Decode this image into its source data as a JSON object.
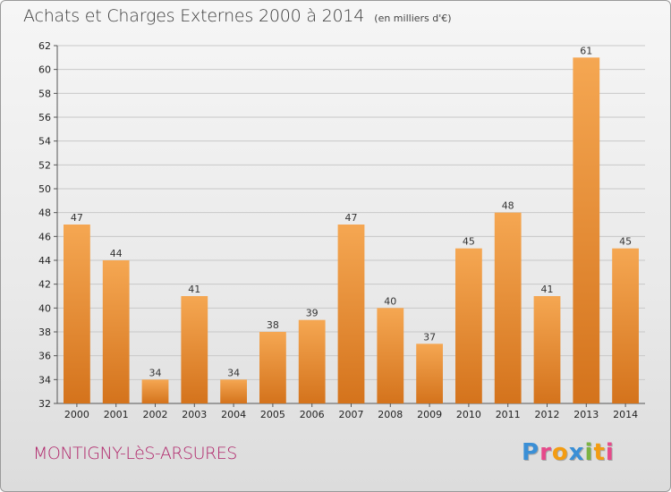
{
  "header": {
    "title": "Achats et Charges Externes 2000 à 2014",
    "subtitle": "(en milliers d'€)"
  },
  "footer": {
    "commune": "MONTIGNY-LèS-ARSURES",
    "logo_letters": [
      "P",
      "r",
      "o",
      "x",
      "i",
      "t",
      "i"
    ],
    "logo_colors": [
      "#3a8fd6",
      "#e64a8a",
      "#f39c12",
      "#3a8fd6",
      "#7cb342",
      "#f39c12",
      "#e64a8a"
    ]
  },
  "chart_data": {
    "type": "bar",
    "title": "Achats et Charges Externes 2000 à 2014",
    "subtitle": "(en milliers d'€)",
    "xlabel": "",
    "ylabel": "",
    "categories": [
      "2000",
      "2001",
      "2002",
      "2003",
      "2004",
      "2005",
      "2006",
      "2007",
      "2008",
      "2009",
      "2010",
      "2011",
      "2012",
      "2013",
      "2014"
    ],
    "values": [
      47,
      44,
      34,
      41,
      34,
      38,
      39,
      47,
      40,
      37,
      45,
      48,
      41,
      61,
      45
    ],
    "ylim": [
      32,
      62
    ],
    "yticks": [
      32,
      34,
      36,
      38,
      40,
      42,
      44,
      46,
      48,
      50,
      52,
      54,
      56,
      58,
      60,
      62
    ],
    "grid": true,
    "bar_color_top": "#f5a752",
    "bar_color_bottom": "#d4731c"
  }
}
